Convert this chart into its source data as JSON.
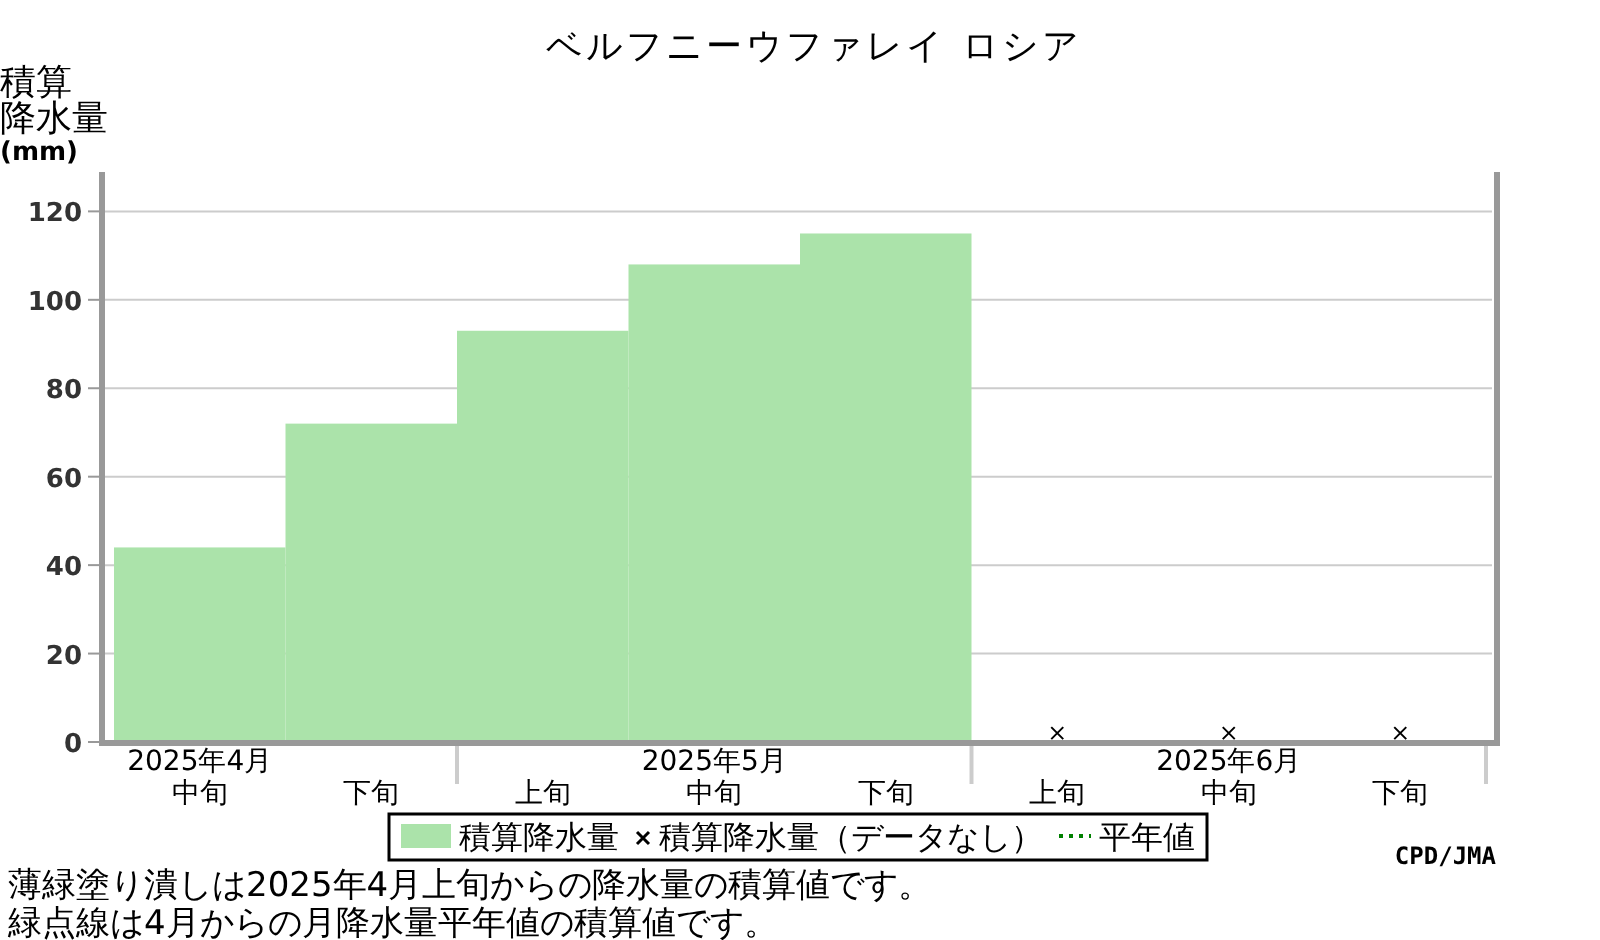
{
  "chart_data": {
    "type": "bar",
    "title": "ベルフニーウファレイ ロシア",
    "ylabel": "積算降水量(mm)",
    "categories": [
      "2025年4月中旬",
      "下旬",
      "上旬",
      "2025年5月中旬",
      "下旬",
      "上旬",
      "2025年6月中旬",
      "下旬"
    ],
    "series": [
      {
        "name": "積算降水量",
        "color": "#abe3aa",
        "values": [
          44,
          72,
          93,
          108,
          115,
          null,
          null,
          null
        ]
      },
      {
        "name": "積算降水量（データなし）",
        "type": "scatter",
        "marker": "cross",
        "color": "#000000",
        "values": [
          null,
          null,
          null,
          null,
          null,
          2,
          2,
          2
        ]
      },
      {
        "name": "平年値",
        "type": "line",
        "line_style": "dotted",
        "color": "#008000",
        "values": [
          null,
          null,
          null,
          null,
          null,
          null,
          null,
          null
        ]
      }
    ],
    "ylim": [
      0,
      128
    ],
    "yticks": [
      0,
      20,
      40,
      60,
      80,
      100,
      120
    ],
    "grid": "y",
    "legend": "bottom",
    "annotations": [
      "薄緑塗り潰しは2025年4月上旬からの降水量の積算値です。",
      "緑点線は4月からの月降水量平年値の積算値です。",
      "CPD/JMA"
    ]
  }
}
